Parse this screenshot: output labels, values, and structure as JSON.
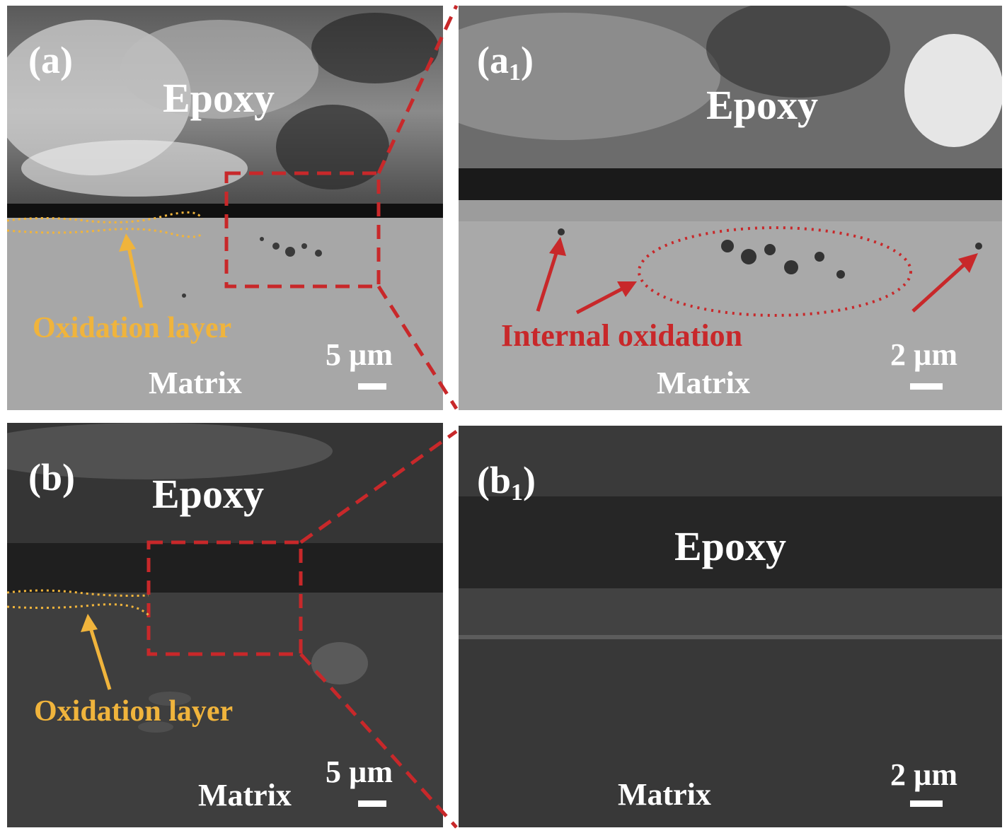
{
  "colors": {
    "accent_red": "#c8282a",
    "oxidation_yellow": "#f0b43c"
  },
  "panels": {
    "a": {
      "label": "(a)",
      "epoxy": "Epoxy",
      "matrix": "Matrix",
      "scale": "5 µm",
      "oxidation": "Oxidation layer"
    },
    "a1": {
      "label_main": "(a",
      "label_sub": "1",
      "label_close": ")",
      "epoxy": "Epoxy",
      "matrix": "Matrix",
      "scale": "2 µm",
      "internal": "Internal oxidation"
    },
    "b": {
      "label": "(b)",
      "epoxy": "Epoxy",
      "matrix": "Matrix",
      "scale": "5 µm",
      "oxidation": "Oxidation layer"
    },
    "b1": {
      "label_main": "(b",
      "label_sub": "1",
      "label_close": ")",
      "epoxy": "Epoxy",
      "matrix": "Matrix",
      "scale": "2 µm"
    }
  }
}
